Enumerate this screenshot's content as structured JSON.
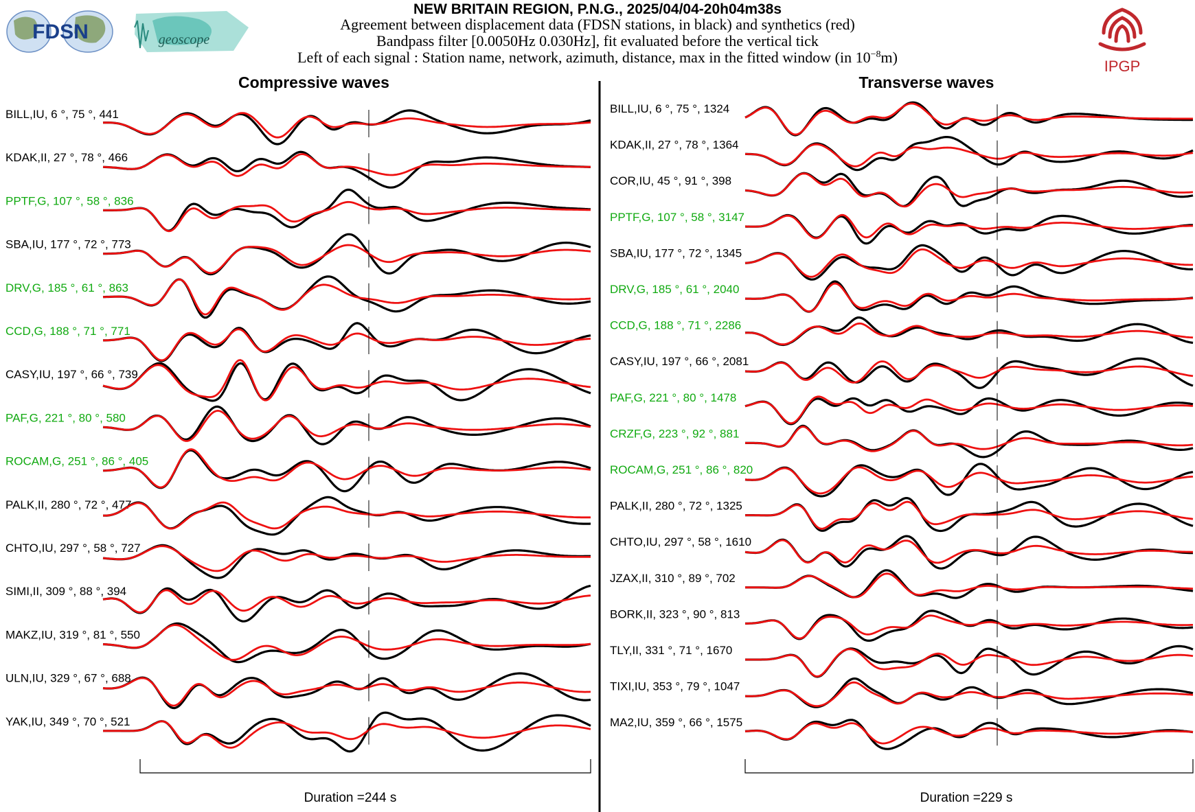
{
  "header": {
    "title": "NEW BRITAIN REGION, P.N.G., 2025/04/04-20h04m38s",
    "line1": "Agreement between displacement data (FDSN stations, in black) and synthetics (red)",
    "line2": "Bandpass filter [0.0050Hz 0.030Hz], fit evaluated before the vertical tick",
    "line3_prefix": "Left of each signal : Station name, network, azimuth, distance, max in the fitted window (in 10",
    "line3_exp": "−8",
    "line3_suffix": "m)"
  },
  "logos": {
    "fdsn": "FDSN",
    "geoscope": "geoscope",
    "ipgp": "IPGP"
  },
  "colors": {
    "data": "#000000",
    "synthetic": "#ee1111",
    "green_station": "#11aa11",
    "ipgp_red": "#c0282d",
    "logo_teal": "#5bbfb3",
    "fdsn_blue": "#3060a8"
  },
  "chart_data": [
    {
      "type": "line",
      "title": "Compressive waves",
      "duration_label": "Duration =244 s",
      "duration_s": 244,
      "series": [
        "data",
        "synthetic"
      ],
      "stations": [
        {
          "label": "BILL,IU, 6 °, 75 °, 441",
          "name": "BILL",
          "network": "IU",
          "azimuth": 6,
          "distance": 75,
          "max": 441,
          "green": false
        },
        {
          "label": "KDAK,II, 27 °, 78 °, 466",
          "name": "KDAK",
          "network": "II",
          "azimuth": 27,
          "distance": 78,
          "max": 466,
          "green": false
        },
        {
          "label": "PPTF,G, 107 °, 58 °, 836",
          "name": "PPTF",
          "network": "G",
          "azimuth": 107,
          "distance": 58,
          "max": 836,
          "green": true
        },
        {
          "label": "SBA,IU, 177 °, 72 °, 773",
          "name": "SBA",
          "network": "IU",
          "azimuth": 177,
          "distance": 72,
          "max": 773,
          "green": false
        },
        {
          "label": "DRV,G, 185 °, 61 °, 863",
          "name": "DRV",
          "network": "G",
          "azimuth": 185,
          "distance": 61,
          "max": 863,
          "green": true
        },
        {
          "label": "CCD,G, 188 °, 71 °, 771",
          "name": "CCD",
          "network": "G",
          "azimuth": 188,
          "distance": 71,
          "max": 771,
          "green": true
        },
        {
          "label": "CASY,IU, 197 °, 66 °, 739",
          "name": "CASY",
          "network": "IU",
          "azimuth": 197,
          "distance": 66,
          "max": 739,
          "green": false
        },
        {
          "label": "PAF,G, 221 °, 80 °, 580",
          "name": "PAF",
          "network": "G",
          "azimuth": 221,
          "distance": 80,
          "max": 580,
          "green": true
        },
        {
          "label": "ROCAM,G, 251 °, 86 °, 405",
          "name": "ROCAM",
          "network": "G",
          "azimuth": 251,
          "distance": 86,
          "max": 405,
          "green": true
        },
        {
          "label": "PALK,II, 280 °, 72 °, 477",
          "name": "PALK",
          "network": "II",
          "azimuth": 280,
          "distance": 72,
          "max": 477,
          "green": false
        },
        {
          "label": "CHTO,IU, 297 °, 58 °, 727",
          "name": "CHTO",
          "network": "IU",
          "azimuth": 297,
          "distance": 58,
          "max": 727,
          "green": false
        },
        {
          "label": "SIMI,II, 309 °, 88 °, 394",
          "name": "SIMI",
          "network": "II",
          "azimuth": 309,
          "distance": 88,
          "max": 394,
          "green": false
        },
        {
          "label": "MAKZ,IU, 319 °, 81 °, 550",
          "name": "MAKZ",
          "network": "IU",
          "azimuth": 319,
          "distance": 81,
          "max": 550,
          "green": false
        },
        {
          "label": "ULN,IU, 329 °, 67 °, 688",
          "name": "ULN",
          "network": "IU",
          "azimuth": 329,
          "distance": 67,
          "max": 688,
          "green": false
        },
        {
          "label": "YAK,IU, 349 °, 70 °, 521",
          "name": "YAK",
          "network": "IU",
          "azimuth": 349,
          "distance": 70,
          "max": 521,
          "green": false
        }
      ]
    },
    {
      "type": "line",
      "title": "Transverse waves",
      "duration_label": "Duration =229 s",
      "duration_s": 229,
      "series": [
        "data",
        "synthetic"
      ],
      "stations": [
        {
          "label": "BILL,IU, 6 °, 75 °, 1324",
          "name": "BILL",
          "network": "IU",
          "azimuth": 6,
          "distance": 75,
          "max": 1324,
          "green": false
        },
        {
          "label": "KDAK,II, 27 °, 78 °, 1364",
          "name": "KDAK",
          "network": "II",
          "azimuth": 27,
          "distance": 78,
          "max": 1364,
          "green": false
        },
        {
          "label": "COR,IU, 45 °, 91 °, 398",
          "name": "COR",
          "network": "IU",
          "azimuth": 45,
          "distance": 91,
          "max": 398,
          "green": false
        },
        {
          "label": "PPTF,G, 107 °, 58 °, 3147",
          "name": "PPTF",
          "network": "G",
          "azimuth": 107,
          "distance": 58,
          "max": 3147,
          "green": true
        },
        {
          "label": "SBA,IU, 177 °, 72 °, 1345",
          "name": "SBA",
          "network": "IU",
          "azimuth": 177,
          "distance": 72,
          "max": 1345,
          "green": false
        },
        {
          "label": "DRV,G, 185 °, 61 °, 2040",
          "name": "DRV",
          "network": "G",
          "azimuth": 185,
          "distance": 61,
          "max": 2040,
          "green": true
        },
        {
          "label": "CCD,G, 188 °, 71 °, 2286",
          "name": "CCD",
          "network": "G",
          "azimuth": 188,
          "distance": 71,
          "max": 2286,
          "green": true
        },
        {
          "label": "CASY,IU, 197 °, 66 °, 2081",
          "name": "CASY",
          "network": "IU",
          "azimuth": 197,
          "distance": 66,
          "max": 2081,
          "green": false
        },
        {
          "label": "PAF,G, 221 °, 80 °, 1478",
          "name": "PAF",
          "network": "G",
          "azimuth": 221,
          "distance": 80,
          "max": 1478,
          "green": true
        },
        {
          "label": "CRZF,G, 223 °, 92 °, 881",
          "name": "CRZF",
          "network": "G",
          "azimuth": 223,
          "distance": 92,
          "max": 881,
          "green": true
        },
        {
          "label": "ROCAM,G, 251 °, 86 °, 820",
          "name": "ROCAM",
          "network": "G",
          "azimuth": 251,
          "distance": 86,
          "max": 820,
          "green": true
        },
        {
          "label": "PALK,II, 280 °, 72 °, 1325",
          "name": "PALK",
          "network": "II",
          "azimuth": 280,
          "distance": 72,
          "max": 1325,
          "green": false
        },
        {
          "label": "CHTO,IU, 297 °, 58 °, 1610",
          "name": "CHTO",
          "network": "IU",
          "azimuth": 297,
          "distance": 58,
          "max": 1610,
          "green": false
        },
        {
          "label": "JZAX,II, 310 °, 89 °, 702",
          "name": "JZAX",
          "network": "II",
          "azimuth": 310,
          "distance": 89,
          "max": 702,
          "green": false
        },
        {
          "label": "BORK,II, 323 °, 90 °, 813",
          "name": "BORK",
          "network": "II",
          "azimuth": 323,
          "distance": 90,
          "max": 813,
          "green": false
        },
        {
          "label": "TLY,II, 331 °, 71 °, 1670",
          "name": "TLY",
          "network": "II",
          "azimuth": 331,
          "distance": 71,
          "max": 1670,
          "green": false
        },
        {
          "label": "TIXI,IU, 353 °, 79 °, 1047",
          "name": "TIXI",
          "network": "IU",
          "azimuth": 353,
          "distance": 79,
          "max": 1047,
          "green": false
        },
        {
          "label": "MA2,IU, 359 °, 66 °, 1575",
          "name": "MA2",
          "network": "IU",
          "azimuth": 359,
          "distance": 66,
          "max": 1575,
          "green": false
        }
      ]
    }
  ]
}
